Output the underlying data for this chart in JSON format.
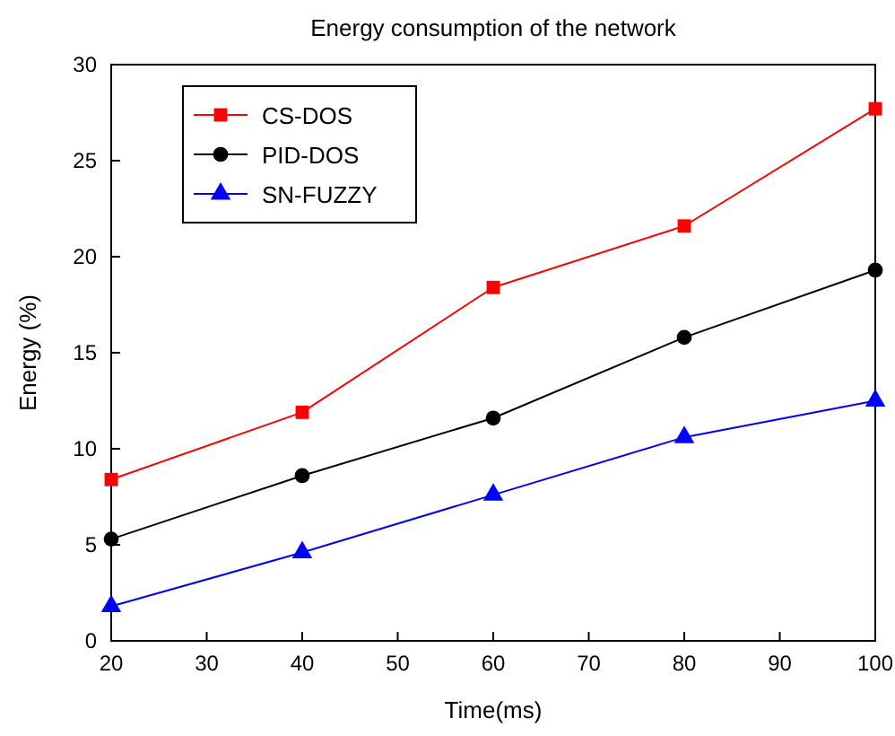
{
  "chart_data": {
    "type": "line",
    "title": "Energy consumption of the network",
    "xlabel": "Time(ms)",
    "ylabel": "Energy (%)",
    "x": [
      20,
      40,
      60,
      80,
      100
    ],
    "series": [
      {
        "name": "CS-DOS",
        "color": "#ff0000",
        "marker": "square",
        "values": [
          8.4,
          11.9,
          18.4,
          21.6,
          27.7
        ]
      },
      {
        "name": "PID-DOS",
        "color": "#000000",
        "marker": "circle",
        "values": [
          5.3,
          8.6,
          11.6,
          15.8,
          19.3
        ]
      },
      {
        "name": "SN-FUZZY",
        "color": "#0000ff",
        "marker": "triangle",
        "values": [
          1.8,
          4.6,
          7.6,
          10.6,
          12.5
        ]
      }
    ],
    "xlim": [
      20,
      100
    ],
    "xticks": [
      20,
      30,
      40,
      50,
      60,
      70,
      80,
      90,
      100
    ],
    "ylim": [
      0,
      30
    ],
    "yticks": [
      0,
      5,
      10,
      15,
      20,
      25,
      30
    ],
    "legend": "top left",
    "grid": false,
    "line_style": "solid"
  }
}
